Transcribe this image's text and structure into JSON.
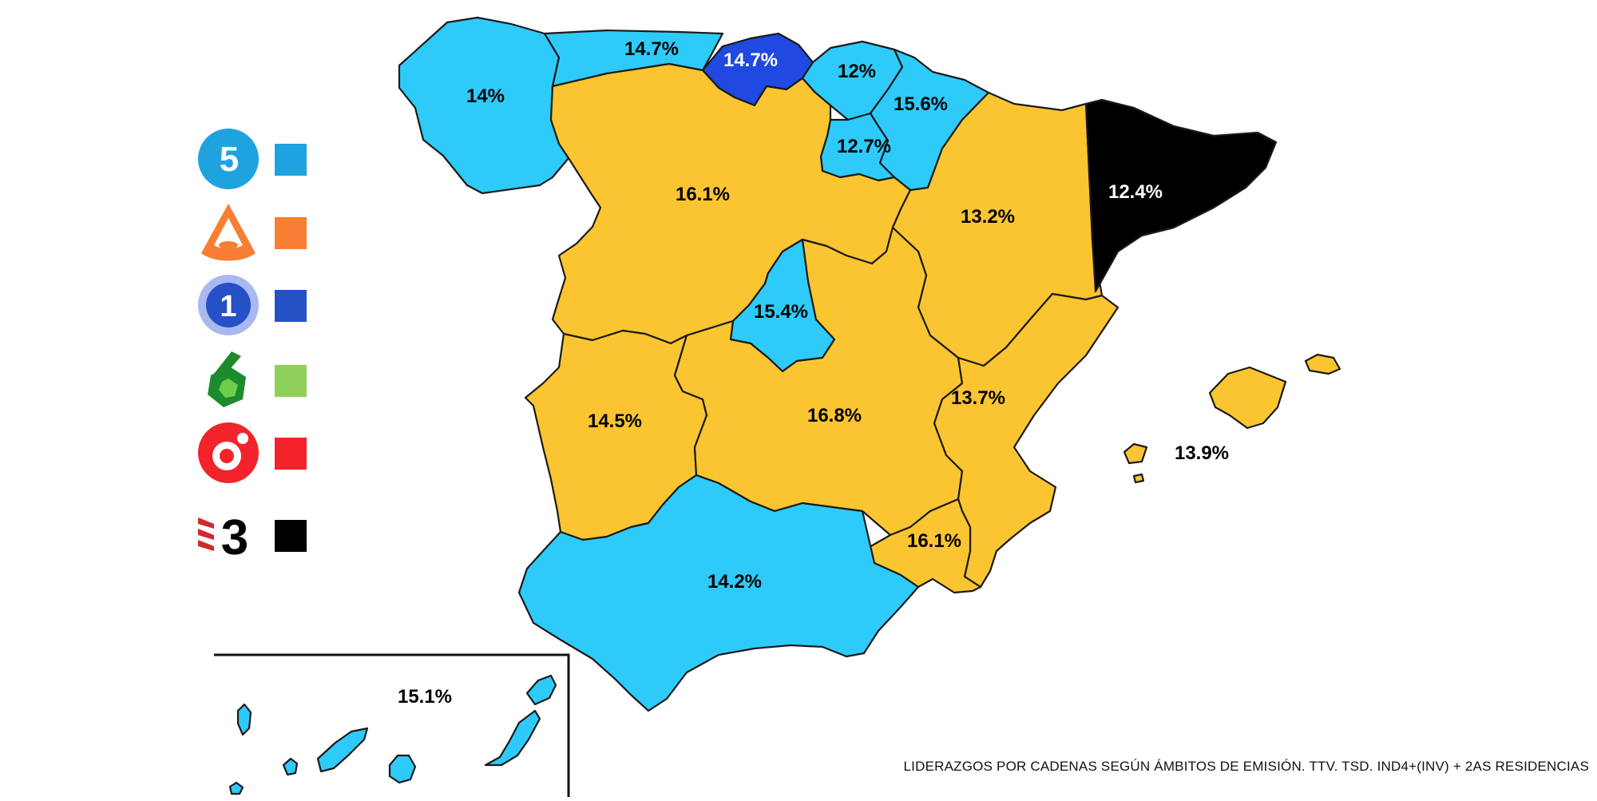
{
  "colors": {
    "blue_light": "#2ecbfa",
    "yellow": "#fbc531",
    "dark_blue": "#1f49e0",
    "black": "#000000",
    "telecinco": "#1fa3df",
    "antena3": "#f77e32",
    "la1": "#2650c6",
    "lasexta": "#8ed05a",
    "cuatro": "#f2232a",
    "tv3": "#000000"
  },
  "legend": [
    {
      "channel": "Telecinco",
      "icon": "telecinco-logo-icon",
      "glyph": "5",
      "color": "#1fa3df"
    },
    {
      "channel": "Antena 3",
      "icon": "antena3-logo-icon",
      "glyph": "",
      "color": "#f77e32"
    },
    {
      "channel": "La 1",
      "icon": "la1-logo-icon",
      "glyph": "1",
      "color": "#2650c6"
    },
    {
      "channel": "laSexta",
      "icon": "lasexta-logo-icon",
      "glyph": "6",
      "color": "#8ed05a"
    },
    {
      "channel": "Cuatro",
      "icon": "cuatro-logo-icon",
      "glyph": "",
      "color": "#f2232a"
    },
    {
      "channel": "TV3",
      "icon": "tv3-logo-icon",
      "glyph": "3",
      "color": "#000000"
    }
  ],
  "regions": [
    {
      "name": "Galicia",
      "leader": "Telecinco",
      "value": "14%"
    },
    {
      "name": "Asturias",
      "leader": "Telecinco",
      "value": "14.7%"
    },
    {
      "name": "Cantabria",
      "leader": "La 1",
      "value": "14.7%"
    },
    {
      "name": "País Vasco",
      "leader": "Telecinco",
      "value": "12%"
    },
    {
      "name": "Navarra",
      "leader": "Telecinco",
      "value": "15.6%"
    },
    {
      "name": "La Rioja",
      "leader": "Telecinco",
      "value": "12.7%"
    },
    {
      "name": "Castilla y León",
      "leader": "Antena 3",
      "value": "16.1%"
    },
    {
      "name": "Aragón",
      "leader": "Antena 3",
      "value": "13.2%"
    },
    {
      "name": "Cataluña",
      "leader": "TV3",
      "value": "12.4%"
    },
    {
      "name": "Madrid",
      "leader": "Telecinco",
      "value": "15.4%"
    },
    {
      "name": "Extremadura",
      "leader": "Antena 3",
      "value": "14.5%"
    },
    {
      "name": "Castilla-La Mancha",
      "leader": "Antena 3",
      "value": "16.8%"
    },
    {
      "name": "Comunidad Valenciana",
      "leader": "Antena 3",
      "value": "13.7%"
    },
    {
      "name": "Baleares",
      "leader": "Antena 3",
      "value": "13.9%"
    },
    {
      "name": "Murcia",
      "leader": "Antena 3",
      "value": "16.1%"
    },
    {
      "name": "Andalucía",
      "leader": "Telecinco",
      "value": "14.2%"
    },
    {
      "name": "Canarias",
      "leader": "Telecinco",
      "value": "15.1%"
    }
  ],
  "caption": "LIDERAZGOS POR CADENAS SEGÚN ÁMBITOS DE EMISIÓN. TTV. TSD. IND4+(INV) + 2AS RESIDENCIAS"
}
